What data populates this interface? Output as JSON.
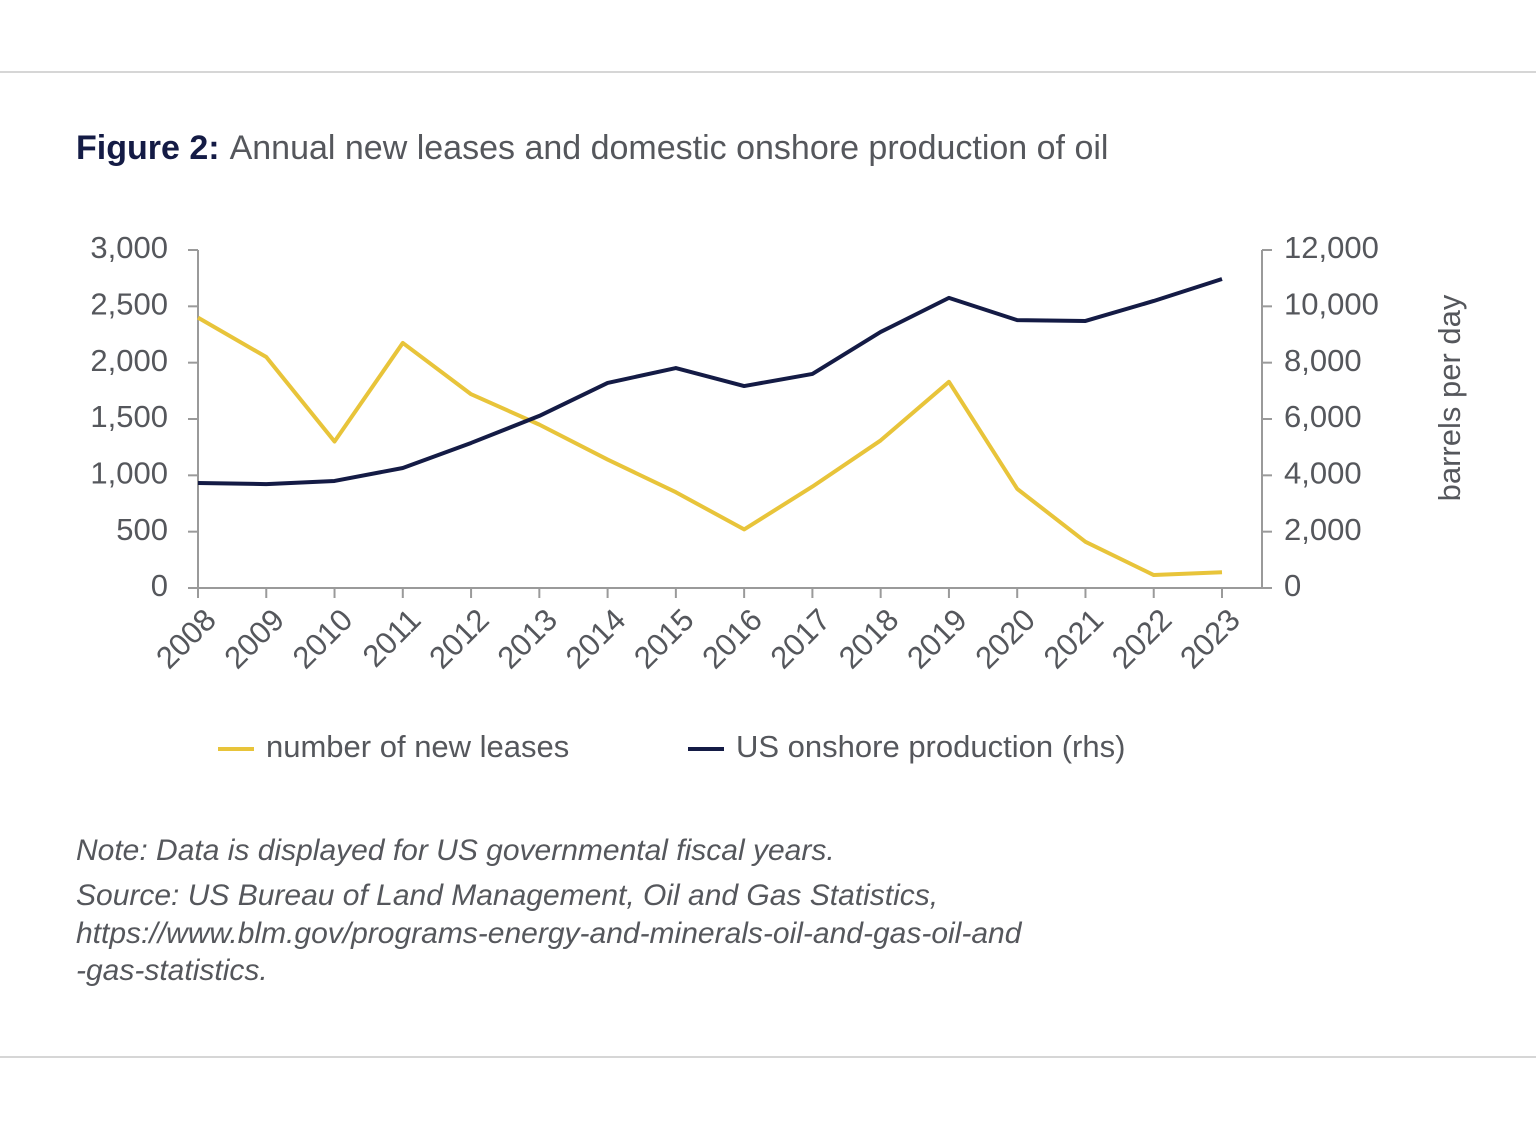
{
  "chart_data": {
    "type": "line",
    "title_label": "Figure 2:",
    "title": "Annual new leases and domestic onshore production of oil",
    "categories": [
      "2008",
      "2009",
      "2010",
      "2011",
      "2012",
      "2013",
      "2014",
      "2015",
      "2016",
      "2017",
      "2018",
      "2019",
      "2020",
      "2021",
      "2022",
      "2023"
    ],
    "series": [
      {
        "name": "number of new leases",
        "color": "#e8c43a",
        "values": [
          2400,
          2050,
          1300,
          2175,
          1720,
          1450,
          1140,
          850,
          520,
          900,
          1310,
          1830,
          880,
          410,
          115,
          140
        ]
      },
      {
        "name": "US onshore production (rhs)",
        "color": "#141b45",
        "axis": "y2",
        "values": [
          3730,
          3690,
          3800,
          4260,
          5150,
          6110,
          7280,
          7810,
          7170,
          7600,
          9090,
          10300,
          9510,
          9480,
          10190,
          10970
        ]
      }
    ],
    "ylim": [
      0,
      3000
    ],
    "yticks": [
      0,
      500,
      {
        "value": 1000,
        "label": "1,000"
      },
      {
        "value": 1500,
        "label": "1,500"
      },
      {
        "value": 2000,
        "label": "2,000"
      },
      {
        "value": 2500,
        "label": "2,500"
      },
      {
        "value": 3000,
        "label": "3,000"
      }
    ],
    "y2lim": [
      0,
      12000
    ],
    "y2ticks": [
      0,
      {
        "value": 2000,
        "label": "2,000"
      },
      {
        "value": 4000,
        "label": "4,000"
      },
      {
        "value": 6000,
        "label": "6,000"
      },
      {
        "value": 8000,
        "label": "8,000"
      },
      {
        "value": 10000,
        "label": "10,000"
      },
      {
        "value": 12000,
        "label": "12,000"
      }
    ],
    "y2label": "barrels  per day",
    "grid": false,
    "notes": [
      "Note: Data is displayed for US governmental fiscal years.",
      "Source: US Bureau of Land Management, Oil and Gas Statistics,",
      "https://www.blm.gov/programs-energy-and-minerals-oil-and-gas-oil-and",
      "-gas-statistics."
    ]
  }
}
